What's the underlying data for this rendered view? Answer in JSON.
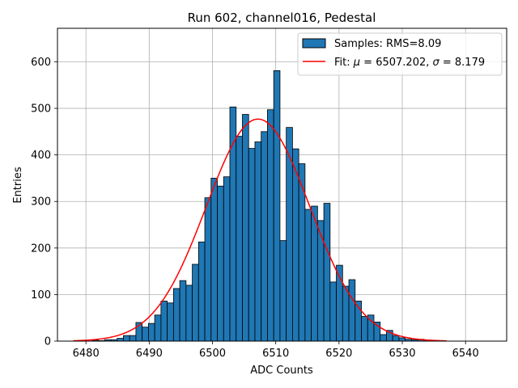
{
  "chart_data": {
    "type": "bar",
    "title": "Run 602, channel016, Pedestal",
    "xlabel": "ADC Counts",
    "ylabel": "Entries",
    "xlim": [
      6475.5,
      6546.5
    ],
    "ylim": [
      0,
      672
    ],
    "xticks": [
      6480,
      6490,
      6500,
      6510,
      6520,
      6530,
      6540
    ],
    "yticks": [
      0,
      100,
      200,
      300,
      400,
      500,
      600
    ],
    "grid": true,
    "legend_position": "top-right",
    "histogram": {
      "name": "Samples: RMS=8.09",
      "color": "#1f77b4",
      "edge_color": "#000000",
      "bin_width": 0.99,
      "bin_start": 6478,
      "counts": [
        0,
        0,
        0,
        2,
        1,
        3,
        3,
        6,
        12,
        12,
        40,
        30,
        38,
        56,
        86,
        82,
        113,
        130,
        120,
        165,
        213,
        308,
        350,
        333,
        353,
        503,
        440,
        487,
        414,
        428,
        450,
        497,
        581,
        216,
        459,
        413,
        381,
        283,
        290,
        259,
        296,
        127,
        163,
        118,
        132,
        86,
        53,
        56,
        41,
        14,
        23,
        12,
        7,
        4,
        3,
        4,
        2
      ]
    },
    "fit": {
      "name": "Fit: μ = 6507.202, σ = 8.179",
      "legend_math": {
        "prefix": "Fit: ",
        "mu_symbol": "μ",
        "mu_value": " = 6507.202, ",
        "sigma_symbol": "σ",
        "sigma_value": " = 8.179"
      },
      "mu": 6507.202,
      "sigma": 8.179,
      "amplitude": 477,
      "x_start": 6478,
      "x_end": 6537,
      "color": "#ff0000"
    }
  }
}
